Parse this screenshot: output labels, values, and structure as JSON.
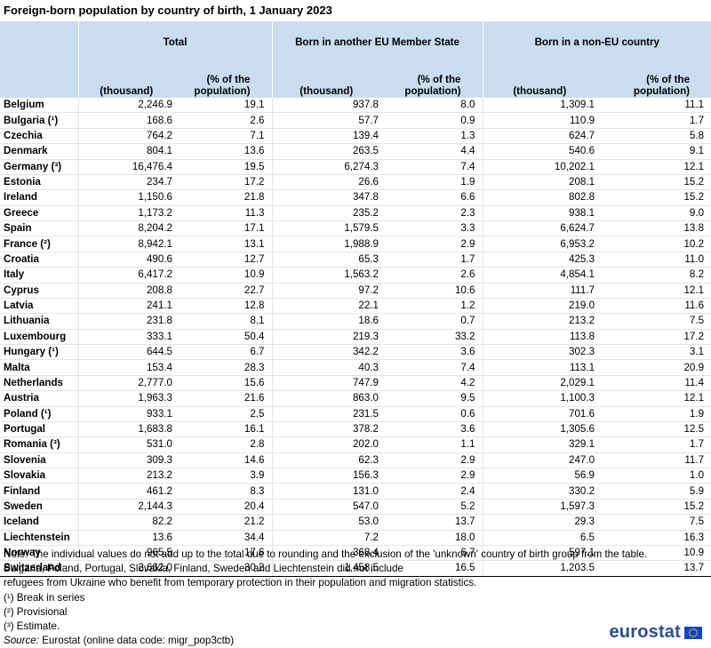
{
  "title": "Foreign-born population by country of birth, 1 January 2023",
  "headers": {
    "group_total": "Total",
    "group_eu": "Born in another EU Member State",
    "group_non_eu": "Born in a non-EU country",
    "thousand": "(thousand)",
    "pct": "(% of the population)"
  },
  "rows": [
    {
      "country": "Belgium",
      "t_k": "2,246.9",
      "t_p": "19.1",
      "eu_k": "937.8",
      "eu_p": "8.0",
      "ne_k": "1,309.1",
      "ne_p": "11.1"
    },
    {
      "country": "Bulgaria (¹)",
      "t_k": "168.6",
      "t_p": "2.6",
      "eu_k": "57.7",
      "eu_p": "0.9",
      "ne_k": "110.9",
      "ne_p": "1.7"
    },
    {
      "country": "Czechia",
      "t_k": "764.2",
      "t_p": "7.1",
      "eu_k": "139.4",
      "eu_p": "1.3",
      "ne_k": "624.7",
      "ne_p": "5.8"
    },
    {
      "country": "Denmark",
      "t_k": "804.1",
      "t_p": "13.6",
      "eu_k": "263.5",
      "eu_p": "4.4",
      "ne_k": "540.6",
      "ne_p": "9.1"
    },
    {
      "country": "Germany (³)",
      "t_k": "16,476.4",
      "t_p": "19.5",
      "eu_k": "6,274.3",
      "eu_p": "7.4",
      "ne_k": "10,202.1",
      "ne_p": "12.1"
    },
    {
      "country": "Estonia",
      "t_k": "234.7",
      "t_p": "17.2",
      "eu_k": "26.6",
      "eu_p": "1.9",
      "ne_k": "208.1",
      "ne_p": "15.2"
    },
    {
      "country": "Ireland",
      "t_k": "1,150.6",
      "t_p": "21.8",
      "eu_k": "347.8",
      "eu_p": "6.6",
      "ne_k": "802.8",
      "ne_p": "15.2"
    },
    {
      "country": "Greece",
      "t_k": "1,173.2",
      "t_p": "11.3",
      "eu_k": "235.2",
      "eu_p": "2.3",
      "ne_k": "938.1",
      "ne_p": "9.0"
    },
    {
      "country": "Spain",
      "t_k": "8,204.2",
      "t_p": "17.1",
      "eu_k": "1,579.5",
      "eu_p": "3.3",
      "ne_k": "6,624.7",
      "ne_p": "13.8"
    },
    {
      "country": "France (²)",
      "t_k": "8,942.1",
      "t_p": "13.1",
      "eu_k": "1,988.9",
      "eu_p": "2.9",
      "ne_k": "6,953.2",
      "ne_p": "10.2"
    },
    {
      "country": "Croatia",
      "t_k": "490.6",
      "t_p": "12.7",
      "eu_k": "65.3",
      "eu_p": "1.7",
      "ne_k": "425.3",
      "ne_p": "11.0"
    },
    {
      "country": "Italy",
      "t_k": "6,417.2",
      "t_p": "10.9",
      "eu_k": "1,563.2",
      "eu_p": "2.6",
      "ne_k": "4,854.1",
      "ne_p": "8.2"
    },
    {
      "country": "Cyprus",
      "t_k": "208.8",
      "t_p": "22.7",
      "eu_k": "97.2",
      "eu_p": "10.6",
      "ne_k": "111.7",
      "ne_p": "12.1"
    },
    {
      "country": "Latvia",
      "t_k": "241.1",
      "t_p": "12.8",
      "eu_k": "22.1",
      "eu_p": "1.2",
      "ne_k": "219.0",
      "ne_p": "11.6"
    },
    {
      "country": "Lithuania",
      "t_k": "231.8",
      "t_p": "8.1",
      "eu_k": "18.6",
      "eu_p": "0.7",
      "ne_k": "213.2",
      "ne_p": "7.5"
    },
    {
      "country": "Luxembourg",
      "t_k": "333.1",
      "t_p": "50.4",
      "eu_k": "219.3",
      "eu_p": "33.2",
      "ne_k": "113.8",
      "ne_p": "17.2"
    },
    {
      "country": "Hungary (¹)",
      "t_k": "644.5",
      "t_p": "6.7",
      "eu_k": "342.2",
      "eu_p": "3.6",
      "ne_k": "302.3",
      "ne_p": "3.1"
    },
    {
      "country": "Malta",
      "t_k": "153.4",
      "t_p": "28.3",
      "eu_k": "40.3",
      "eu_p": "7.4",
      "ne_k": "113.1",
      "ne_p": "20.9"
    },
    {
      "country": "Netherlands",
      "t_k": "2,777.0",
      "t_p": "15.6",
      "eu_k": "747.9",
      "eu_p": "4.2",
      "ne_k": "2,029.1",
      "ne_p": "11.4"
    },
    {
      "country": "Austria",
      "t_k": "1,963.3",
      "t_p": "21.6",
      "eu_k": "863.0",
      "eu_p": "9.5",
      "ne_k": "1,100.3",
      "ne_p": "12.1"
    },
    {
      "country": "Poland (¹)",
      "t_k": "933.1",
      "t_p": "2.5",
      "eu_k": "231.5",
      "eu_p": "0.6",
      "ne_k": "701.6",
      "ne_p": "1.9"
    },
    {
      "country": "Portugal",
      "t_k": "1,683.8",
      "t_p": "16.1",
      "eu_k": "378.2",
      "eu_p": "3.6",
      "ne_k": "1,305.6",
      "ne_p": "12.5"
    },
    {
      "country": "Romania (³)",
      "t_k": "531.0",
      "t_p": "2.8",
      "eu_k": "202.0",
      "eu_p": "1.1",
      "ne_k": "329.1",
      "ne_p": "1.7"
    },
    {
      "country": "Slovenia",
      "t_k": "309.3",
      "t_p": "14.6",
      "eu_k": "62.3",
      "eu_p": "2.9",
      "ne_k": "247.0",
      "ne_p": "11.7"
    },
    {
      "country": "Slovakia",
      "t_k": "213.2",
      "t_p": "3.9",
      "eu_k": "156.3",
      "eu_p": "2.9",
      "ne_k": "56.9",
      "ne_p": "1.0"
    },
    {
      "country": "Finland",
      "t_k": "461.2",
      "t_p": "8.3",
      "eu_k": "131.0",
      "eu_p": "2.4",
      "ne_k": "330.2",
      "ne_p": "5.9"
    },
    {
      "country": "Sweden",
      "t_k": "2,144.3",
      "t_p": "20.4",
      "eu_k": "547.0",
      "eu_p": "5.2",
      "ne_k": "1,597.3",
      "ne_p": "15.2"
    },
    {
      "country": "Iceland",
      "t_k": "82.2",
      "t_p": "21.2",
      "eu_k": "53.0",
      "eu_p": "13.7",
      "ne_k": "29.3",
      "ne_p": "7.5"
    },
    {
      "country": "Liechtenstein",
      "t_k": "13.6",
      "t_p": "34.4",
      "eu_k": "7.2",
      "eu_p": "18.0",
      "ne_k": "6.5",
      "ne_p": "16.3"
    },
    {
      "country": "Norway",
      "t_k": "965.5",
      "t_p": "17.6",
      "eu_k": "368.4",
      "eu_p": "6.7",
      "ne_k": "597.1",
      "ne_p": "10.9"
    },
    {
      "country": "Switzerland",
      "t_k": "2,662.0",
      "t_p": "30.2",
      "eu_k": "1,458.5",
      "eu_p": "16.5",
      "ne_k": "1,203.5",
      "ne_p": "13.7"
    }
  ],
  "notes": [
    "Note: The individual values do not add up to the total due to rounding and the exclusion of the 'unknown' country of birth group from the table.",
    "Bulgaria, Poland, Portugal, Slovakia, Finland, Sweden and Liechtenstein did not include",
    "refugees from Ukraine who benefit from temporary protection in their population and migration statistics.",
    "(¹) Break in series",
    "(²) Provisional",
    "(³) Estimate."
  ],
  "source": {
    "label": "Source:",
    "text": "Eurostat (online data code: migr_pop3ctb)"
  },
  "logo": {
    "text": "eurostat",
    "flag_color": "#0e47cb",
    "star_color": "#ffdd00"
  }
}
